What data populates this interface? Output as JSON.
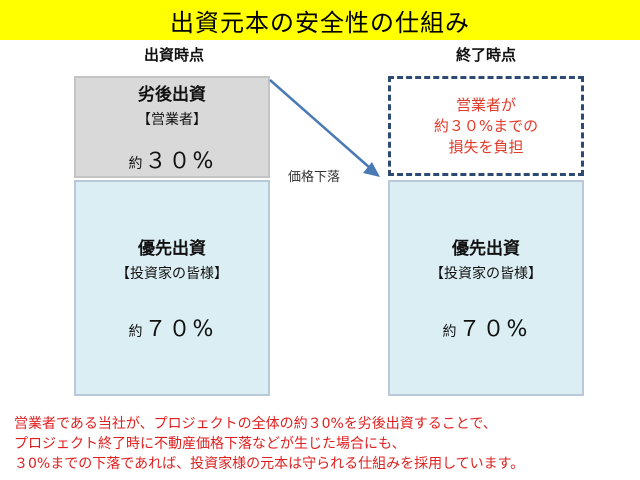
{
  "title": "出資元本の安全性の仕組み",
  "columns": {
    "left_header": "出資時点",
    "right_header": "終了時点"
  },
  "left": {
    "subordinate": {
      "title": "劣後出資",
      "sub": "【営業者】",
      "prefix": "約",
      "percent": "３０%"
    },
    "senior": {
      "title": "優先出資",
      "sub": "【投資家の皆様】",
      "prefix": "約",
      "percent": "７０%"
    }
  },
  "right": {
    "loss": {
      "line1": "営業者が",
      "line2": "約３０%までの",
      "line3": "損失を負担"
    },
    "senior": {
      "title": "優先出資",
      "sub": "【投資家の皆様】",
      "prefix": "約",
      "percent": "７０%"
    }
  },
  "arrow_label": "価格下落",
  "caption": [
    "営業者である当社が、プロジェクトの全体の約３0%を劣後出資することで、",
    "プロジェクト終了時に不動産価格下落などが生じた場合にも、",
    "３0%までの下落であれば、投資家様の元本は守られる仕組みを採用しています。"
  ],
  "colors": {
    "title_bg": "#ffff00",
    "subordinate_fill": "#d9d9d9",
    "senior_fill": "#dbeef4",
    "loss_border": "#2c4a72",
    "loss_text": "#e23b2a",
    "arrow": "#4a7ab5",
    "caption_text": "#e02020"
  }
}
